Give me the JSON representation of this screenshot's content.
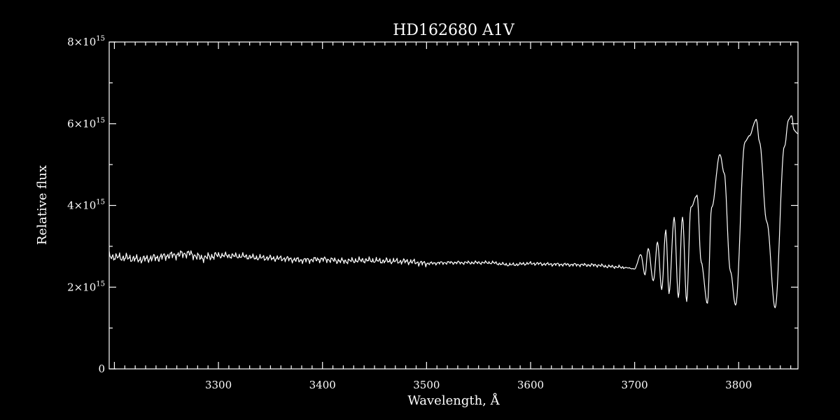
{
  "chart_data": {
    "type": "line",
    "title": "HD162680   A1V",
    "xlabel": "Wavelength, Å",
    "ylabel": "Relative flux",
    "xlim": [
      3195,
      3857
    ],
    "ylim": [
      0,
      8000000000000000.0
    ],
    "x_ticks": [
      3300,
      3400,
      3500,
      3600,
      3700,
      3800
    ],
    "y_ticks": [
      {
        "value": 0,
        "label": "0",
        "exp": ""
      },
      {
        "value": 2000000000000000.0,
        "label": "2×10",
        "exp": "15"
      },
      {
        "value": 4000000000000000.0,
        "label": "4×10",
        "exp": "15"
      },
      {
        "value": 6000000000000000.0,
        "label": "6×10",
        "exp": "15"
      },
      {
        "value": 8000000000000000.0,
        "label": "8×10",
        "exp": "15"
      }
    ],
    "grid": false,
    "series": [
      {
        "x": [
          3195,
          3210,
          3225,
          3240,
          3255,
          3270,
          3285,
          3300,
          3320,
          3340,
          3360,
          3380,
          3400,
          3420,
          3440,
          3460,
          3480,
          3500,
          3520,
          3540,
          3560,
          3580,
          3600,
          3620,
          3640,
          3660,
          3680,
          3690,
          3700,
          3706,
          3710,
          3713,
          3718,
          3722,
          3726,
          3730,
          3733,
          3738,
          3742,
          3746,
          3750,
          3754,
          3760,
          3764,
          3770,
          3774,
          3782,
          3786,
          3792,
          3797,
          3806,
          3810,
          3817,
          3820,
          3827,
          3835,
          3844,
          3848,
          3851,
          3853,
          3857
        ],
        "y": [
          2750000000000000.0,
          2720000000000000.0,
          2680000000000000.0,
          2720000000000000.0,
          2780000000000000.0,
          2820000000000000.0,
          2720000000000000.0,
          2780000000000000.0,
          2760000000000000.0,
          2720000000000000.0,
          2700000000000000.0,
          2660000000000000.0,
          2680000000000000.0,
          2640000000000000.0,
          2660000000000000.0,
          2640000000000000.0,
          2630000000000000.0,
          2580000000000000.0,
          2600000000000000.0,
          2600000000000000.0,
          2600000000000000.0,
          2550000000000000.0,
          2580000000000000.0,
          2560000000000000.0,
          2550000000000000.0,
          2540000000000000.0,
          2500000000000000.0,
          2480000000000000.0,
          2450000000000000.0,
          2800000000000000.0,
          2300000000000000.0,
          2950000000000000.0,
          2150000000000000.0,
          3100000000000000.0,
          1950000000000000.0,
          3400000000000000.0,
          1850000000000000.0,
          3700000000000000.0,
          1750000000000000.0,
          3720000000000000.0,
          1650000000000000.0,
          3950000000000000.0,
          4250000000000000.0,
          2600000000000000.0,
          1600000000000000.0,
          3950000000000000.0,
          5250000000000000.0,
          4800000000000000.0,
          2400000000000000.0,
          1550000000000000.0,
          5550000000000000.0,
          5700000000000000.0,
          6100000000000000.0,
          5550000000000000.0,
          3600000000000000.0,
          1500000000000000.0,
          5450000000000000.0,
          6100000000000000.0,
          6200000000000000.0,
          5850000000000000.0,
          5750000000000000.0
        ]
      }
    ]
  }
}
